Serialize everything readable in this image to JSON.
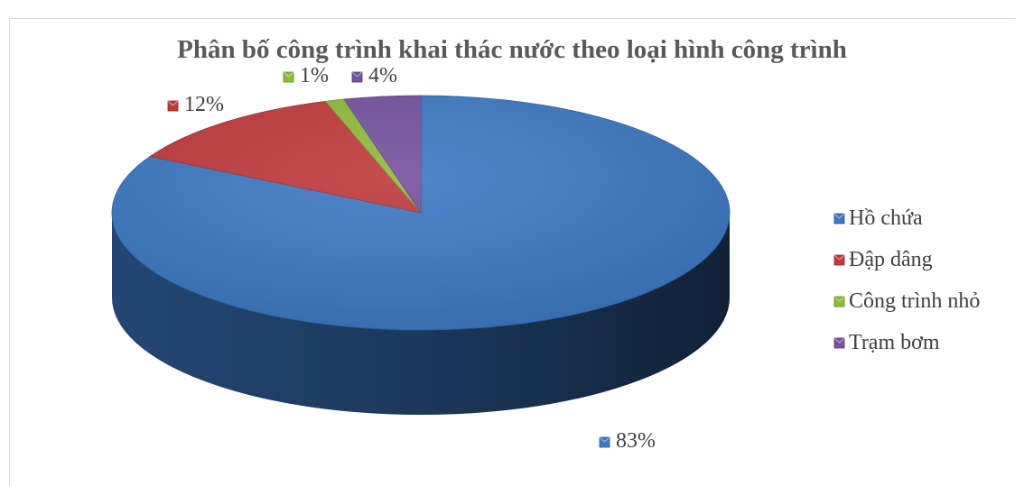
{
  "chart_data": {
    "type": "pie",
    "style": "3d",
    "title": "Phân bố công trình khai thác nước theo loại hình công trình",
    "legend_position": "right",
    "slices": [
      {
        "label": "Hồ chứa",
        "value": 83,
        "value_label": "83%",
        "color": "#3b78c4"
      },
      {
        "label": "Đập dâng",
        "value": 12,
        "value_label": "12%",
        "color": "#c0393b"
      },
      {
        "label": "Công trình nhỏ",
        "value": 1,
        "value_label": "1%",
        "color": "#8dbb3a"
      },
      {
        "label": "Trạm bơm",
        "value": 4,
        "value_label": "4%",
        "color": "#7650a0"
      }
    ]
  }
}
